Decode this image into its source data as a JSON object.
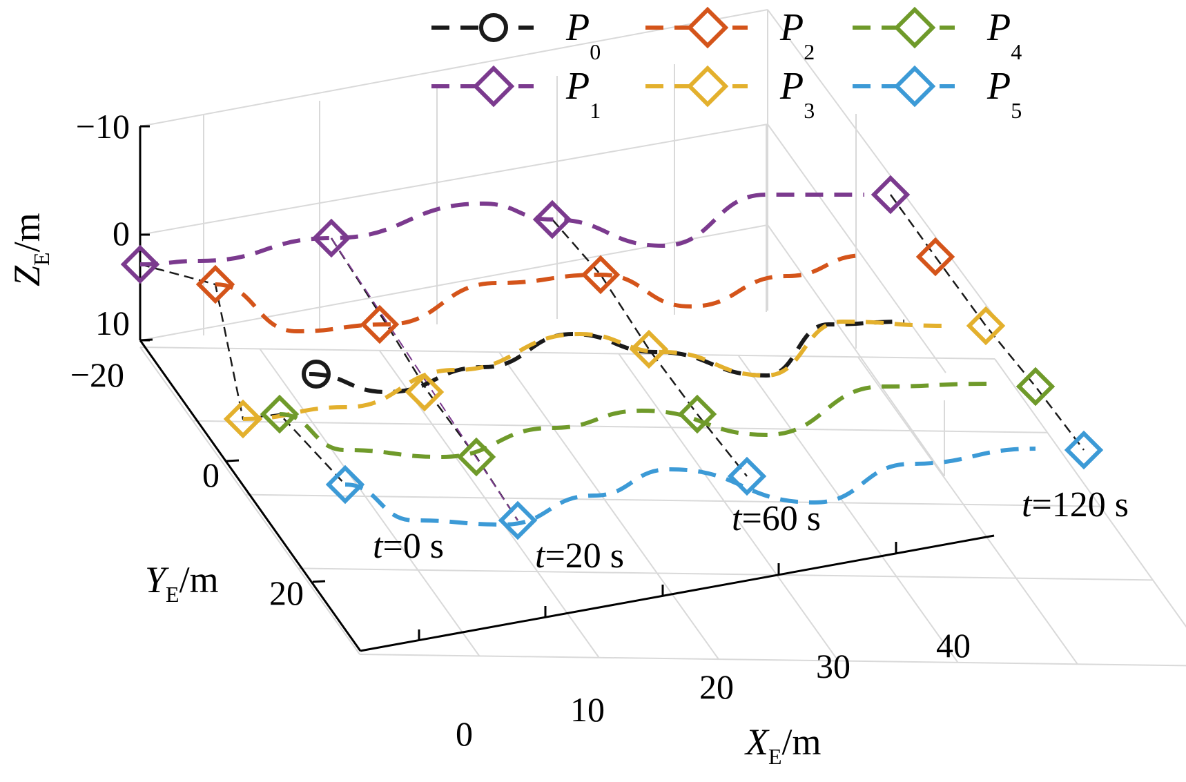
{
  "chart_data": {
    "type": "line3d",
    "xlabel": {
      "main": "X",
      "sub": "E",
      "unit": "/m"
    },
    "ylabel": {
      "main": "Y",
      "sub": "E",
      "unit": "/m"
    },
    "zlabel": {
      "main": "Z",
      "sub": "E",
      "unit": "/m"
    },
    "x_ticks": [
      "0",
      "10",
      "20",
      "30",
      "40"
    ],
    "y_ticks": [
      "−20",
      "0",
      "20"
    ],
    "z_ticks": [
      "−10",
      "0",
      "10"
    ],
    "grid": true,
    "legend_position": "top",
    "series": [
      {
        "name": "P",
        "sub": "0",
        "color": "#1a1a1a",
        "marker": "circle"
      },
      {
        "name": "P",
        "sub": "1",
        "color": "#7b3a8e",
        "marker": "diamond"
      },
      {
        "name": "P",
        "sub": "2",
        "color": "#d4541a",
        "marker": "diamond"
      },
      {
        "name": "P",
        "sub": "3",
        "color": "#e3b02d",
        "marker": "diamond"
      },
      {
        "name": "P",
        "sub": "4",
        "color": "#6f9a2a",
        "marker": "diamond"
      },
      {
        "name": "P",
        "sub": "5",
        "color": "#3c9ad6",
        "marker": "diamond"
      }
    ],
    "annotations": [
      {
        "italic": "t",
        "text": "=0 s"
      },
      {
        "italic": "t",
        "text": "=20 s"
      },
      {
        "italic": "t",
        "text": "=60 s"
      },
      {
        "italic": "t",
        "text": "=120 s"
      }
    ]
  }
}
